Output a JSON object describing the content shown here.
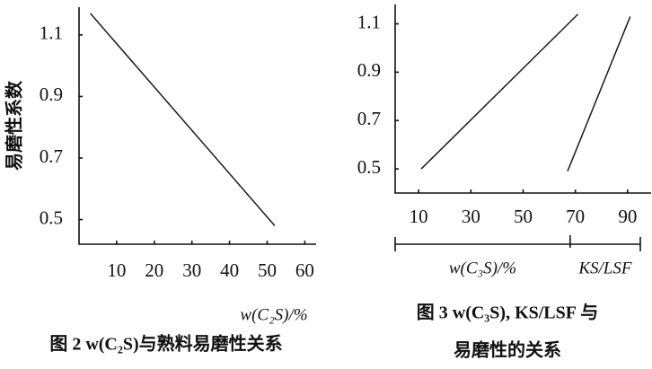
{
  "chart_data": [
    {
      "type": "line",
      "title": "图 2  w(C₂S)与熟料易磨性关系",
      "ylabel": "易磨性系数",
      "xlabel": "w(C₂S)/%",
      "xlim": [
        0,
        63
      ],
      "ylim": [
        0.42,
        1.19
      ],
      "xticks": [
        10,
        20,
        30,
        40,
        50,
        60
      ],
      "yticks": [
        0.5,
        0.7,
        0.9,
        1.1
      ],
      "series": [
        {
          "color": "#1a1a1a",
          "x": [
            3,
            52
          ],
          "values": [
            1.17,
            0.48
          ]
        }
      ]
    },
    {
      "type": "line",
      "title": [
        "图 3  w(C₃S), KS/LSF 与",
        "易磨性的关系"
      ],
      "xlim": [
        1,
        99
      ],
      "ylim": [
        0.4,
        1.18
      ],
      "xticks": [
        10,
        30,
        50,
        70,
        90
      ],
      "yticks": [
        0.5,
        0.7,
        0.9,
        1.1
      ],
      "xsplit": 68,
      "series": [
        {
          "name": "w(C₃S)/%",
          "color": "#1a1a1a",
          "x": [
            11,
            71
          ],
          "values": [
            0.5,
            1.14
          ]
        },
        {
          "name": "KS/LSF",
          "color": "#1a1a1a",
          "x": [
            67,
            91
          ],
          "values": [
            0.49,
            1.13
          ]
        }
      ]
    }
  ]
}
